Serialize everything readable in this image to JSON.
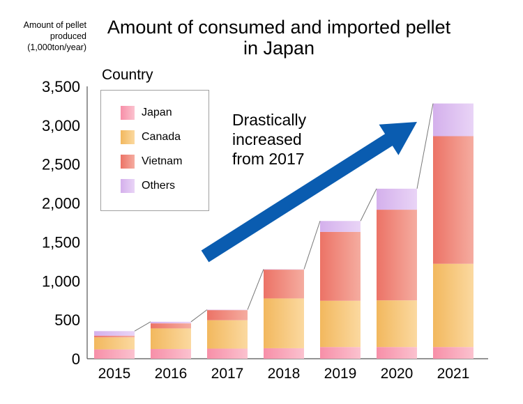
{
  "chart_data": {
    "type": "bar",
    "stacked": true,
    "title": "Amount of consumed and imported pellet in Japan",
    "ylabel_lines": [
      "Amount of pellet",
      "produced",
      "(1,000ton/year)"
    ],
    "categories": [
      "2015",
      "2016",
      "2017",
      "2018",
      "2019",
      "2020",
      "2021"
    ],
    "ylim": [
      0,
      3500
    ],
    "yticks": [
      "0",
      "500",
      "1,000",
      "1,500",
      "2,000",
      "2,500",
      "3,000",
      "3,500"
    ],
    "legend_title": "Country",
    "series": [
      {
        "name": "Japan",
        "values": [
          120,
          125,
          130,
          135,
          150,
          150,
          150
        ],
        "color_a": "#f78fa8",
        "color_b": "#fbc2cf"
      },
      {
        "name": "Canada",
        "values": [
          155,
          265,
          365,
          640,
          595,
          600,
          1070
        ],
        "color_a": "#f2b85e",
        "color_b": "#fbd9a0"
      },
      {
        "name": "Vietnam",
        "values": [
          20,
          65,
          130,
          370,
          885,
          1165,
          1640
        ],
        "color_a": "#ec7366",
        "color_b": "#f5aca0"
      },
      {
        "name": "Others",
        "values": [
          60,
          20,
          5,
          5,
          140,
          270,
          420
        ],
        "color_a": "#d4b0ec",
        "color_b": "#e9d4f6"
      }
    ],
    "annotation": [
      "Drastically",
      "increased",
      "from 2017"
    ],
    "arrow_color": "#0a5cb0"
  }
}
